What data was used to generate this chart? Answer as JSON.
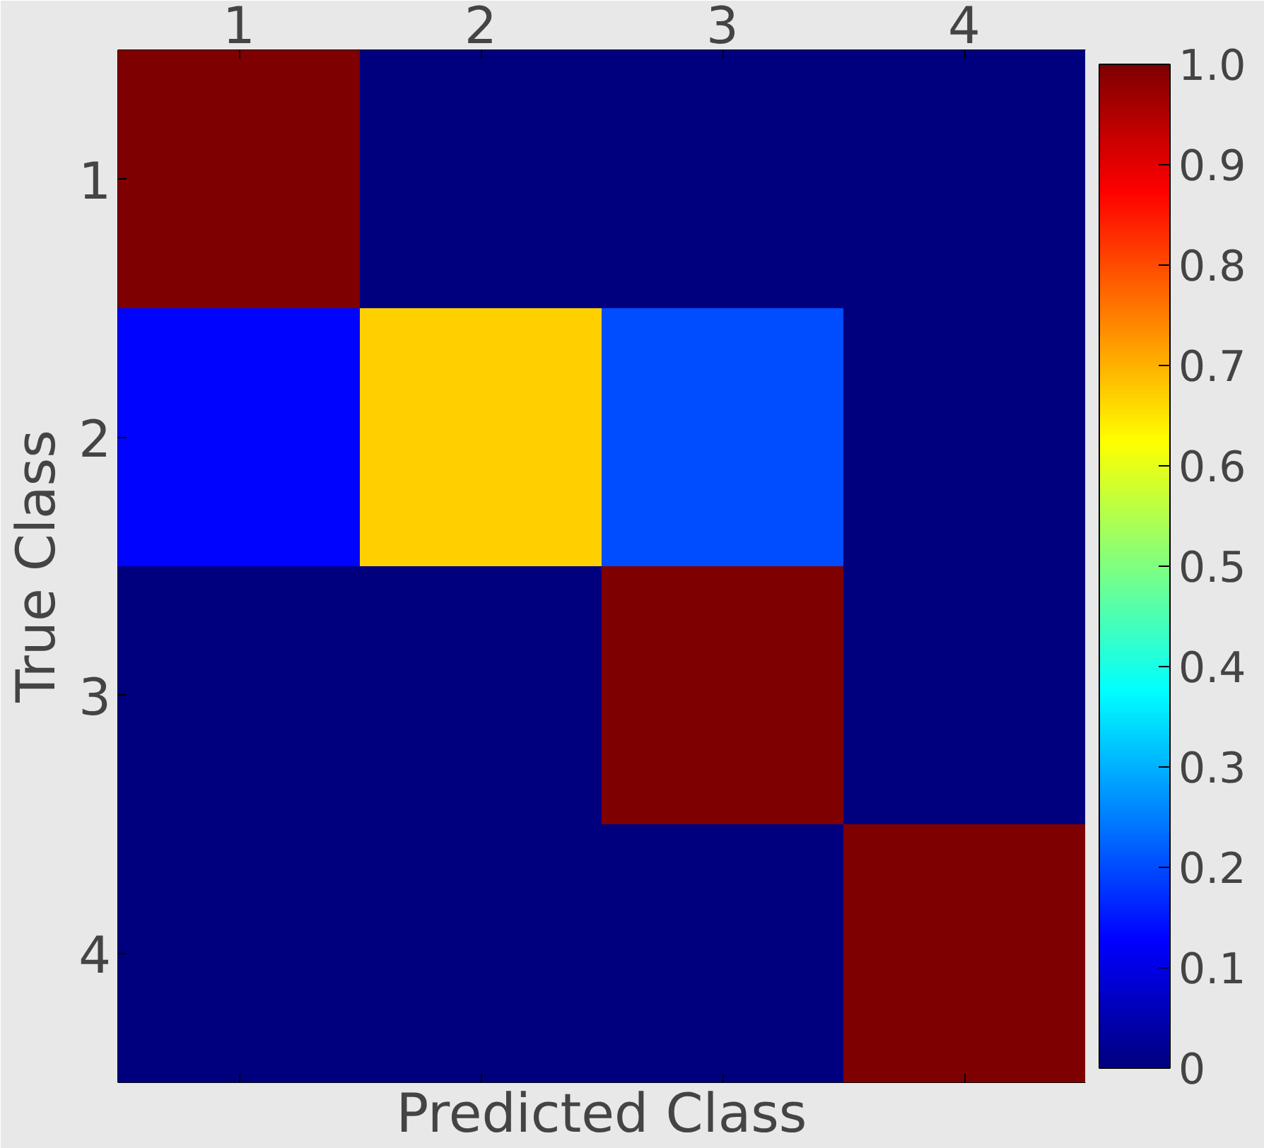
{
  "chart_data": {
    "type": "heatmap",
    "xlabel": "Predicted Class",
    "ylabel": "True Class",
    "categories": [
      "1",
      "2",
      "3",
      "4"
    ],
    "y_categories": [
      "1",
      "2",
      "3",
      "4"
    ],
    "cells": [
      [
        1.0,
        0,
        0,
        0
      ],
      [
        0.13,
        0.67,
        0.2,
        0
      ],
      [
        0,
        0,
        1.0,
        0
      ],
      [
        0,
        0,
        0,
        1.0
      ]
    ],
    "clim": [
      0,
      1.0
    ],
    "cticks": [
      0,
      0.1,
      0.2,
      0.3,
      0.4,
      0.5,
      0.6,
      0.7,
      0.8,
      0.9,
      {
        "value": 1.0,
        "label": "1.0"
      }
    ]
  }
}
